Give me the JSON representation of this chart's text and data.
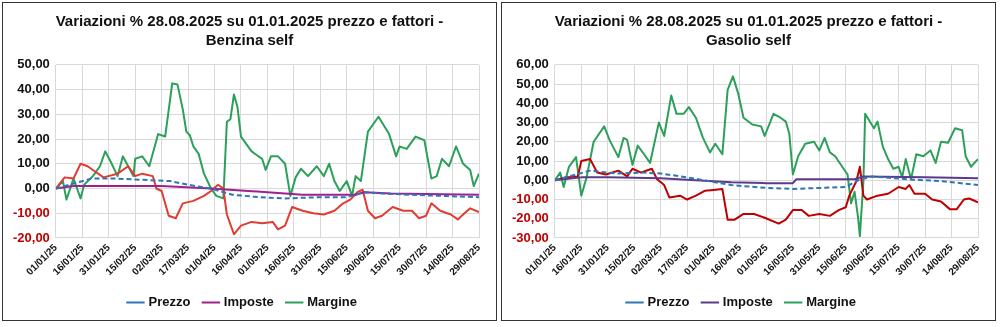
{
  "chart_data": [
    {
      "type": "line",
      "title": "Variazioni % 28.08.2025 su 01.01.2025 prezzo e fattori - Benzina self",
      "xlim": [
        "2025-01-01",
        "2025-08-29"
      ],
      "xticks": [
        {
          "value": "2025-01-01",
          "label": "01/01/25"
        },
        {
          "value": "2025-01-16",
          "label": "16/01/25"
        },
        {
          "value": "2025-01-31",
          "label": "31/01/25"
        },
        {
          "value": "2025-02-15",
          "label": "15/02/25"
        },
        {
          "value": "2025-03-02",
          "label": "02/03/25"
        },
        {
          "value": "2025-03-17",
          "label": "17/03/25"
        },
        {
          "value": "2025-04-01",
          "label": "01/04/25"
        },
        {
          "value": "2025-04-16",
          "label": "16/04/25"
        },
        {
          "value": "2025-05-01",
          "label": "01/05/25"
        },
        {
          "value": "2025-05-16",
          "label": "16/05/25"
        },
        {
          "value": "2025-05-31",
          "label": "31/05/25"
        },
        {
          "value": "2025-06-15",
          "label": "15/06/25"
        },
        {
          "value": "2025-06-30",
          "label": "30/06/25"
        },
        {
          "value": "2025-07-15",
          "label": "15/07/25"
        },
        {
          "value": "2025-07-30",
          "label": "30/07/25"
        },
        {
          "value": "2025-08-14",
          "label": "14/08/25"
        },
        {
          "value": "2025-08-29",
          "label": "29/08/25"
        }
      ],
      "ylim": [
        -20,
        50
      ],
      "yticks": [
        {
          "value": -20,
          "label": "-20,00"
        },
        {
          "value": -10,
          "label": "-10,00"
        },
        {
          "value": 0,
          "label": "0,00"
        },
        {
          "value": 10,
          "label": "10,00"
        },
        {
          "value": 20,
          "label": "20,00"
        },
        {
          "value": 30,
          "label": "30,00"
        },
        {
          "value": 40,
          "label": "40,00"
        },
        {
          "value": 50,
          "label": "50,00"
        }
      ],
      "grid": true,
      "legend": "bottom",
      "marker": "none",
      "series": [
        {
          "name": "Prezzo",
          "color": "#2e75b6",
          "line_style": "dashed",
          "x": [
            "2025-01-01",
            "2025-01-11",
            "2025-01-21",
            "2025-02-05",
            "2025-02-20",
            "2025-03-07",
            "2025-03-17",
            "2025-03-30",
            "2025-04-11",
            "2025-04-26",
            "2025-05-11",
            "2025-05-31",
            "2025-06-15",
            "2025-06-25",
            "2025-07-05",
            "2025-07-20",
            "2025-08-09",
            "2025-08-29"
          ],
          "values": [
            0,
            2,
            4,
            4,
            3.5,
            3,
            1.5,
            0,
            -2.5,
            -3.5,
            -4,
            -3.5,
            -3.5,
            -1.5,
            -2,
            -2.5,
            -3,
            -3.5
          ]
        },
        {
          "name": "Imposte",
          "color": "#a0208f",
          "line_style": "solid",
          "x": [
            "2025-01-01",
            "2025-01-11",
            "2025-03-02",
            "2025-03-30",
            "2025-05-01",
            "2025-05-21",
            "2025-06-20",
            "2025-06-25",
            "2025-07-10",
            "2025-08-29"
          ],
          "values": [
            0,
            1,
            1,
            0,
            -1.5,
            -2.5,
            -2.5,
            -1.5,
            -2,
            -2.5
          ]
        },
        {
          "color": "#e03c31",
          "line_style": "solid",
          "x": [
            "2025-01-01",
            "2025-01-06",
            "2025-01-11",
            "2025-01-15",
            "2025-01-19",
            "2025-01-22",
            "2025-01-28",
            "2025-02-05",
            "2025-02-11",
            "2025-02-15",
            "2025-02-19",
            "2025-02-25",
            "2025-02-27",
            "2025-03-02",
            "2025-03-06",
            "2025-03-10",
            "2025-03-14",
            "2025-03-20",
            "2025-03-26",
            "2025-03-30",
            "2025-04-03",
            "2025-04-06",
            "2025-04-08",
            "2025-04-12",
            "2025-04-16",
            "2025-04-22",
            "2025-04-28",
            "2025-05-04",
            "2025-05-07",
            "2025-05-11",
            "2025-05-15",
            "2025-05-21",
            "2025-05-27",
            "2025-06-02",
            "2025-06-08",
            "2025-06-13",
            "2025-06-17",
            "2025-06-21",
            "2025-06-24",
            "2025-06-27",
            "2025-07-01",
            "2025-07-05",
            "2025-07-11",
            "2025-07-17",
            "2025-07-22",
            "2025-07-26",
            "2025-07-30",
            "2025-08-02",
            "2025-08-07",
            "2025-08-13",
            "2025-08-17",
            "2025-08-20",
            "2025-08-24",
            "2025-08-29"
          ],
          "values": [
            0,
            4.5,
            4,
            10,
            9,
            7.5,
            4.5,
            6,
            9,
            5,
            6,
            5,
            0,
            -1,
            -11,
            -12,
            -6,
            -5,
            -3,
            -1,
            1.5,
            0,
            -10.5,
            -18.5,
            -15,
            -13.5,
            -14,
            -13.5,
            -16.5,
            -15,
            -7.5,
            -9,
            -10,
            -10.5,
            -9,
            -6,
            -4.5,
            -1.5,
            -0.5,
            -9,
            -12,
            -11,
            -7.5,
            -9,
            -9,
            -12,
            -11,
            -6,
            -9,
            -10.5,
            -12.5,
            -10.5,
            -8,
            -9.5
          ]
        },
        {
          "name": "Margine",
          "color": "#2ca05a",
          "line_style": "solid",
          "x": [
            "2025-01-01",
            "2025-01-05",
            "2025-01-07",
            "2025-01-11",
            "2025-01-15",
            "2025-01-17",
            "2025-01-22",
            "2025-01-26",
            "2025-01-29",
            "2025-02-01",
            "2025-02-05",
            "2025-02-08",
            "2025-02-11",
            "2025-02-14",
            "2025-02-15",
            "2025-02-19",
            "2025-02-23",
            "2025-02-28",
            "2025-03-04",
            "2025-03-08",
            "2025-03-11",
            "2025-03-14",
            "2025-03-16",
            "2025-03-18",
            "2025-03-20",
            "2025-03-23",
            "2025-03-26",
            "2025-03-30",
            "2025-04-02",
            "2025-04-06",
            "2025-04-08",
            "2025-04-10",
            "2025-04-12",
            "2025-04-14",
            "2025-04-16",
            "2025-04-22",
            "2025-04-28",
            "2025-04-30",
            "2025-05-03",
            "2025-05-07",
            "2025-05-11",
            "2025-05-14",
            "2025-05-17",
            "2025-05-20",
            "2025-05-24",
            "2025-05-29",
            "2025-06-02",
            "2025-06-05",
            "2025-06-08",
            "2025-06-11",
            "2025-06-15",
            "2025-06-18",
            "2025-06-20",
            "2025-06-23",
            "2025-06-27",
            "2025-07-03",
            "2025-07-09",
            "2025-07-13",
            "2025-07-15",
            "2025-07-19",
            "2025-07-24",
            "2025-07-29",
            "2025-08-02",
            "2025-08-05",
            "2025-08-08",
            "2025-08-12",
            "2025-08-16",
            "2025-08-20",
            "2025-08-24",
            "2025-08-26",
            "2025-08-29"
          ],
          "values": [
            0,
            3,
            -4.5,
            4,
            -4,
            1.5,
            5,
            9,
            15,
            11,
            5,
            13,
            9,
            5,
            12,
            13,
            9,
            22,
            21,
            42.5,
            42,
            32,
            23,
            21.5,
            17,
            14,
            6,
            0,
            -3,
            -4,
            27,
            28,
            38,
            33,
            21,
            15,
            12,
            7.5,
            13,
            13,
            10,
            -3,
            4.5,
            8,
            5,
            9,
            5,
            10,
            3,
            -1,
            3,
            -3,
            5,
            3,
            23,
            29,
            22,
            13,
            17,
            16,
            21,
            19.5,
            4,
            5,
            12,
            9,
            17,
            10,
            7.5,
            1,
            6
          ]
        }
      ]
    },
    {
      "type": "line",
      "title": "Variazioni % 28.08.2025 su 01.01.2025 prezzo e fattori - Gasolio self",
      "xlim": [
        "2025-01-01",
        "2025-08-29"
      ],
      "xticks": [
        {
          "value": "2025-01-01",
          "label": "01/01/25"
        },
        {
          "value": "2025-01-16",
          "label": "16/01/25"
        },
        {
          "value": "2025-01-31",
          "label": "31/01/25"
        },
        {
          "value": "2025-02-15",
          "label": "15/02/25"
        },
        {
          "value": "2025-03-02",
          "label": "02/03/25"
        },
        {
          "value": "2025-03-17",
          "label": "17/03/25"
        },
        {
          "value": "2025-04-01",
          "label": "01/04/25"
        },
        {
          "value": "2025-04-16",
          "label": "16/04/25"
        },
        {
          "value": "2025-05-01",
          "label": "01/05/25"
        },
        {
          "value": "2025-05-16",
          "label": "16/05/25"
        },
        {
          "value": "2025-05-31",
          "label": "31/05/25"
        },
        {
          "value": "2025-06-15",
          "label": "15/06/25"
        },
        {
          "value": "2025-06-30",
          "label": "30/06/25"
        },
        {
          "value": "2025-07-15",
          "label": "15/07/25"
        },
        {
          "value": "2025-07-30",
          "label": "30/07/25"
        },
        {
          "value": "2025-08-14",
          "label": "14/08/25"
        },
        {
          "value": "2025-08-29",
          "label": "29/08/25"
        }
      ],
      "ylim": [
        -30,
        60
      ],
      "yticks": [
        {
          "value": -30,
          "label": "-30,00"
        },
        {
          "value": -20,
          "label": "-20,00"
        },
        {
          "value": -10,
          "label": "-10,00"
        },
        {
          "value": 0,
          "label": "0,00"
        },
        {
          "value": 10,
          "label": "10,00"
        },
        {
          "value": 20,
          "label": "20,00"
        },
        {
          "value": 30,
          "label": "30,00"
        },
        {
          "value": 40,
          "label": "40,00"
        },
        {
          "value": 50,
          "label": "50,00"
        },
        {
          "value": 60,
          "label": "60,00"
        }
      ],
      "grid": true,
      "legend": "bottom",
      "marker": "none",
      "series": [
        {
          "name": "Prezzo",
          "color": "#2e75b6",
          "line_style": "dashed",
          "x": [
            "2025-01-01",
            "2025-01-11",
            "2025-01-21",
            "2025-02-05",
            "2025-02-20",
            "2025-03-02",
            "2025-03-17",
            "2025-04-11",
            "2025-05-01",
            "2025-05-16",
            "2025-05-31",
            "2025-06-15",
            "2025-06-22",
            "2025-06-30",
            "2025-07-20",
            "2025-08-09",
            "2025-08-29"
          ],
          "values": [
            0,
            2.5,
            5,
            3.5,
            4,
            3.5,
            1.5,
            -2.5,
            -4,
            -4.5,
            -4,
            -3.5,
            0,
            2,
            0.5,
            -0.5,
            -2.5
          ]
        },
        {
          "name": "Imposte",
          "color": "#5b3a8c",
          "line_style": "solid",
          "x": [
            "2025-01-01",
            "2025-01-16",
            "2025-01-31",
            "2025-03-02",
            "2025-03-22",
            "2025-04-11",
            "2025-05-01",
            "2025-05-16",
            "2025-05-18",
            "2025-06-20",
            "2025-06-25",
            "2025-07-30",
            "2025-08-29"
          ],
          "values": [
            0,
            1.5,
            1.5,
            1,
            0,
            -1,
            -1.5,
            -1.5,
            0.5,
            0.5,
            2,
            1.5,
            1
          ]
        },
        {
          "color": "#c00000",
          "line_style": "solid",
          "x": [
            "2025-01-01",
            "2025-01-07",
            "2025-01-14",
            "2025-01-16",
            "2025-01-21",
            "2025-01-25",
            "2025-01-30",
            "2025-02-06",
            "2025-02-11",
            "2025-02-14",
            "2025-02-19",
            "2025-02-25",
            "2025-02-28",
            "2025-03-04",
            "2025-03-07",
            "2025-03-13",
            "2025-03-17",
            "2025-03-22",
            "2025-03-27",
            "2025-04-01",
            "2025-04-06",
            "2025-04-09",
            "2025-04-13",
            "2025-04-18",
            "2025-04-24",
            "2025-04-30",
            "2025-05-08",
            "2025-05-12",
            "2025-05-16",
            "2025-05-21",
            "2025-05-25",
            "2025-05-31",
            "2025-06-06",
            "2025-06-11",
            "2025-06-15",
            "2025-06-17",
            "2025-06-21",
            "2025-06-23",
            "2025-06-25",
            "2025-06-27",
            "2025-07-03",
            "2025-07-09",
            "2025-07-15",
            "2025-07-19",
            "2025-07-21",
            "2025-07-24",
            "2025-07-30",
            "2025-08-03",
            "2025-08-08",
            "2025-08-13",
            "2025-08-17",
            "2025-08-21",
            "2025-08-24",
            "2025-08-29"
          ],
          "values": [
            0,
            1.5,
            2,
            10,
            11,
            4,
            3,
            5,
            2,
            6,
            4,
            6,
            0.5,
            -2.5,
            -9,
            -8,
            -10,
            -8,
            -5.5,
            -5,
            -4.5,
            -20.5,
            -20.5,
            -17.5,
            -17.5,
            -19.5,
            -22.5,
            -20.5,
            -15.5,
            -15.5,
            -18.5,
            -17.5,
            -18.5,
            -15.5,
            -14,
            -8,
            -0.5,
            7,
            -8,
            -10,
            -8,
            -7,
            -3.5,
            -4.5,
            -2.5,
            -7,
            -7,
            -10,
            -11,
            -15,
            -15,
            -10,
            -9.5,
            -11.5
          ]
        },
        {
          "name": "Margine",
          "color": "#2ca05a",
          "line_style": "solid",
          "x": [
            "2025-01-01",
            "2025-01-04",
            "2025-01-06",
            "2025-01-09",
            "2025-01-13",
            "2025-01-16",
            "2025-01-19",
            "2025-01-23",
            "2025-01-29",
            "2025-02-01",
            "2025-02-06",
            "2025-02-09",
            "2025-02-11",
            "2025-02-14",
            "2025-02-17",
            "2025-02-21",
            "2025-02-24",
            "2025-03-01",
            "2025-03-04",
            "2025-03-08",
            "2025-03-11",
            "2025-03-15",
            "2025-03-18",
            "2025-03-22",
            "2025-03-26",
            "2025-03-30",
            "2025-04-02",
            "2025-04-06",
            "2025-04-09",
            "2025-04-12",
            "2025-04-15",
            "2025-04-18",
            "2025-04-23",
            "2025-04-28",
            "2025-04-30",
            "2025-05-05",
            "2025-05-09",
            "2025-05-12",
            "2025-05-14",
            "2025-05-16",
            "2025-05-19",
            "2025-05-23",
            "2025-05-28",
            "2025-05-31",
            "2025-06-03",
            "2025-06-06",
            "2025-06-09",
            "2025-06-13",
            "2025-06-16",
            "2025-06-18",
            "2025-06-20",
            "2025-06-22",
            "2025-06-23",
            "2025-06-25",
            "2025-06-26",
            "2025-06-29",
            "2025-07-01",
            "2025-07-03",
            "2025-07-06",
            "2025-07-09",
            "2025-07-12",
            "2025-07-15",
            "2025-07-17",
            "2025-07-19",
            "2025-07-22",
            "2025-07-25",
            "2025-07-29",
            "2025-08-02",
            "2025-08-05",
            "2025-08-08",
            "2025-08-12",
            "2025-08-16",
            "2025-08-20",
            "2025-08-22",
            "2025-08-25",
            "2025-08-29"
          ],
          "values": [
            0,
            4,
            -3.5,
            7,
            12,
            -8,
            1.5,
            20,
            28,
            21,
            12,
            22,
            21,
            8,
            18,
            13,
            9,
            30,
            23,
            44,
            34.5,
            34.5,
            38,
            32.5,
            22,
            14.5,
            19,
            13.5,
            47,
            54,
            45,
            32.5,
            29,
            28,
            23,
            34.5,
            32.5,
            30.5,
            24,
            3,
            12.5,
            19,
            20,
            15.5,
            22,
            14.5,
            12.5,
            7,
            3,
            -12,
            -6,
            -19.5,
            -29,
            -0.5,
            34.5,
            30,
            27,
            30.5,
            17.5,
            11,
            6,
            7,
            1.5,
            11,
            0.5,
            13.5,
            12.5,
            15.5,
            9,
            20,
            19.5,
            27,
            26,
            12.5,
            7,
            11
          ]
        }
      ]
    }
  ]
}
